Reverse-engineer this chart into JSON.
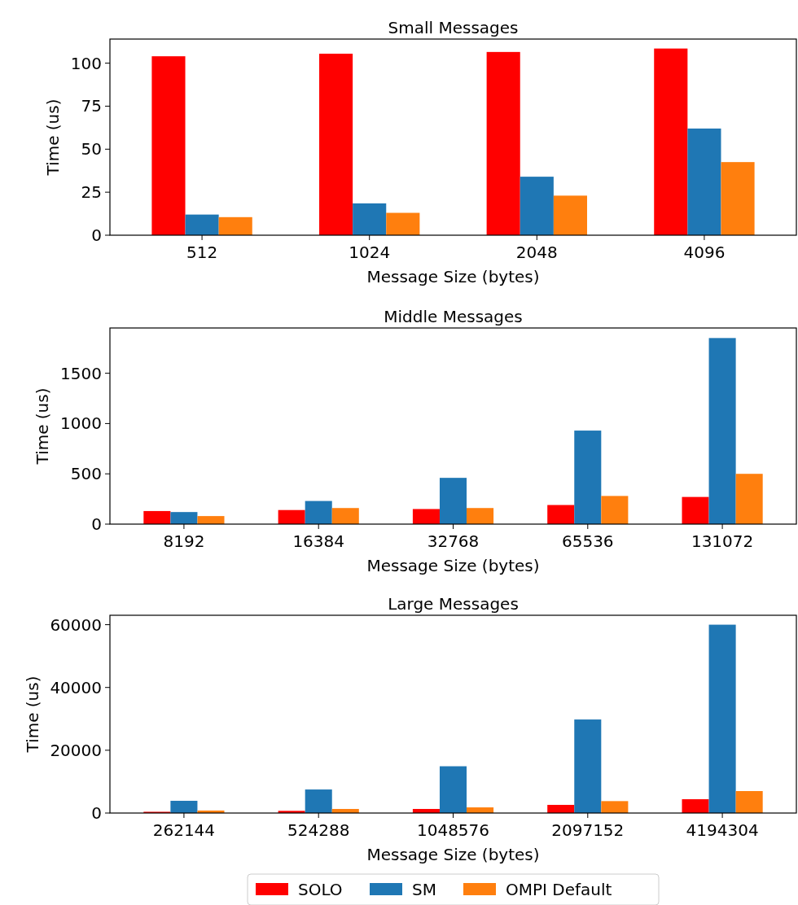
{
  "chart_data": [
    {
      "type": "bar",
      "title": "Small Messages",
      "xlabel": "Message Size (bytes)",
      "ylabel": "Time (us)",
      "categories": [
        "512",
        "1024",
        "2048",
        "4096"
      ],
      "ylim": [
        0,
        114
      ],
      "yticks": [
        0,
        25,
        50,
        75,
        100
      ],
      "legend": "bottom",
      "series": [
        {
          "name": "SOLO",
          "color": "#ff0000",
          "values": [
            104,
            105.5,
            106.5,
            108.5
          ]
        },
        {
          "name": "SM",
          "color": "#1f77b4",
          "values": [
            12,
            18.5,
            34,
            62
          ]
        },
        {
          "name": "OMPI Default",
          "color": "#ff7f0e",
          "values": [
            10.5,
            13,
            23,
            42.5
          ]
        }
      ]
    },
    {
      "type": "bar",
      "title": "Middle Messages",
      "xlabel": "Message Size (bytes)",
      "ylabel": "Time (us)",
      "categories": [
        "8192",
        "16384",
        "32768",
        "65536",
        "131072"
      ],
      "ylim": [
        0,
        1950
      ],
      "yticks": [
        0,
        500,
        1000,
        1500
      ],
      "series": [
        {
          "color": "#ff0000",
          "values": [
            130,
            140,
            150,
            190,
            270
          ]
        },
        {
          "color": "#1f77b4",
          "values": [
            120,
            230,
            460,
            930,
            1850
          ]
        },
        {
          "color": "#ff7f0e",
          "values": [
            80,
            160,
            160,
            280,
            500
          ]
        }
      ]
    },
    {
      "type": "bar",
      "title": "Large Messages",
      "xlabel": "Message Size (bytes)",
      "ylabel": "Time (us)",
      "categories": [
        "262144",
        "524288",
        "1048576",
        "2097152",
        "4194304"
      ],
      "ylim": [
        0,
        63000
      ],
      "yticks": [
        0,
        20000,
        40000,
        60000
      ],
      "series": [
        {
          "color": "#ff0000",
          "values": [
            400,
            700,
            1300,
            2600,
            4400
          ]
        },
        {
          "color": "#1f77b4",
          "values": [
            3900,
            7500,
            14900,
            29800,
            60000
          ]
        },
        {
          "color": "#ff7f0e",
          "values": [
            800,
            1300,
            1800,
            3800,
            7000
          ]
        }
      ]
    }
  ]
}
